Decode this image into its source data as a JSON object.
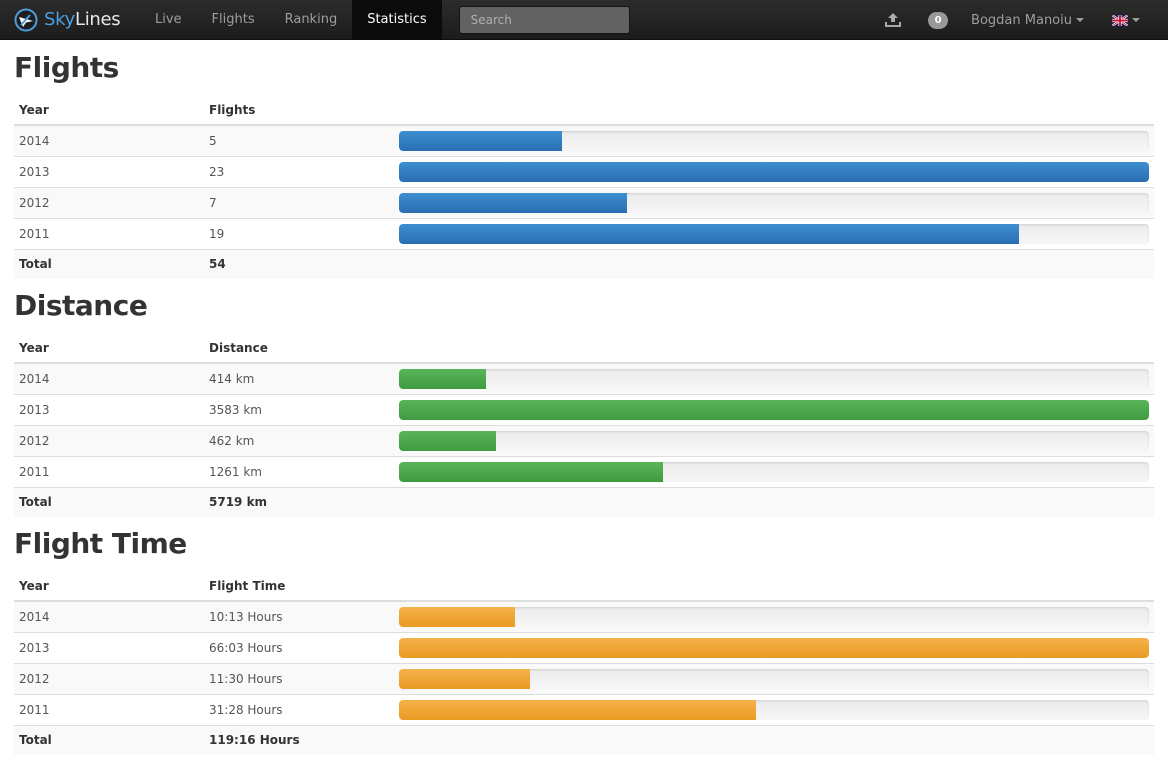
{
  "navbar": {
    "brand_sky": "Sky",
    "brand_lines": "Lines",
    "brand_color": "#4a9fe0",
    "items": [
      {
        "label": "Live",
        "active": false
      },
      {
        "label": "Flights",
        "active": false
      },
      {
        "label": "Ranking",
        "active": false
      },
      {
        "label": "Statistics",
        "active": true
      }
    ],
    "search": {
      "placeholder": "Search",
      "value": ""
    },
    "upload_icon": "upload-icon",
    "notification_count": "0",
    "user_name": "Bogdan Manoiu",
    "language_icon": "uk-flag-icon"
  },
  "sections": [
    {
      "title": "Flights",
      "year_header": "Year",
      "value_header": "Flights",
      "bar_color": "#3a87ce",
      "rows": [
        {
          "year": "2014",
          "value": "5",
          "fraction": 0.217
        },
        {
          "year": "2013",
          "value": "23",
          "fraction": 1.0
        },
        {
          "year": "2012",
          "value": "7",
          "fraction": 0.304
        },
        {
          "year": "2011",
          "value": "19",
          "fraction": 0.826
        }
      ],
      "total_label": "Total",
      "total_value": "54"
    },
    {
      "title": "Distance",
      "year_header": "Year",
      "value_header": "Distance",
      "bar_color": "#4cad4c",
      "rows": [
        {
          "year": "2014",
          "value": "414 km",
          "fraction": 0.1155
        },
        {
          "year": "2013",
          "value": "3583 km",
          "fraction": 1.0
        },
        {
          "year": "2012",
          "value": "462 km",
          "fraction": 0.129
        },
        {
          "year": "2011",
          "value": "1261 km",
          "fraction": 0.352
        }
      ],
      "total_label": "Total",
      "total_value": "5719 km"
    },
    {
      "title": "Flight Time",
      "year_header": "Year",
      "value_header": "Flight Time",
      "bar_color": "#f0a536",
      "rows": [
        {
          "year": "2014",
          "value": "10:13 Hours",
          "fraction": 0.155
        },
        {
          "year": "2013",
          "value": "66:03 Hours",
          "fraction": 1.0
        },
        {
          "year": "2012",
          "value": "11:30 Hours",
          "fraction": 0.174
        },
        {
          "year": "2011",
          "value": "31:28 Hours",
          "fraction": 0.476
        }
      ],
      "total_label": "Total",
      "total_value": "119:16 Hours"
    }
  ]
}
